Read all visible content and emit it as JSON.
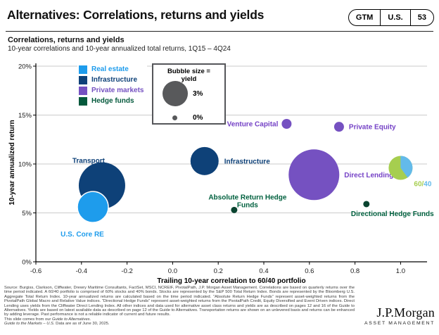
{
  "header": {
    "title": "Alternatives: Correlations, returns and yields",
    "gtm_label": "GTM",
    "region_label": "U.S.",
    "page_number": "53"
  },
  "chart_data": {
    "type": "scatter",
    "title": "Correlations, returns and yields",
    "subtitle": "10-year correlations and 10-year annualized total returns, 1Q15 – 4Q24",
    "xlabel": "Trailing 10-year correlation to 60/40 portfolio",
    "ylabel": "10-year annualized return",
    "xlim": [
      -0.6,
      1.12
    ],
    "ylim": [
      0,
      20
    ],
    "x_ticks": [
      -0.6,
      -0.4,
      -0.2,
      0.0,
      0.2,
      0.4,
      0.6,
      0.8,
      1.0
    ],
    "y_ticks": [
      0,
      5,
      10,
      15,
      20
    ],
    "grid": true,
    "bubble_legend": {
      "title": "Bubble size = yield",
      "large_label": "3%",
      "small_label": "0%"
    },
    "series_legend": [
      {
        "label": "Real estate",
        "color": "#1E9CEC"
      },
      {
        "label": "Infrastructure",
        "color": "#0E4178"
      },
      {
        "label": "Private markets",
        "color": "#7551C1"
      },
      {
        "label": "Hedge funds",
        "color": "#04593C"
      }
    ],
    "points": [
      {
        "id": "transport",
        "label_lines": [
          "Transport"
        ],
        "x": -0.31,
        "y": 7.8,
        "r": 33,
        "color": "#0E4178",
        "label_color": "#0E4178",
        "label_anchor": "end",
        "label_dx": 4,
        "label_dy": [
          -32
        ]
      },
      {
        "id": "us-core-re",
        "label_lines": [
          "U.S. Core RE"
        ],
        "x": -0.35,
        "y": 5.6,
        "r": 22,
        "color": "#1E9CEC",
        "label_color": "#1E9CEC",
        "white_stroke": true,
        "label_anchor": "middle",
        "label_dx": -15,
        "label_dy": [
          42
        ]
      },
      {
        "id": "infrastructure",
        "label_lines": [
          "Infrastructure"
        ],
        "x": 0.14,
        "y": 10.3,
        "r": 20,
        "color": "#0E4178",
        "label_color": "#0E4178",
        "label_anchor": "start",
        "label_dx": 28,
        "label_dy": [
          3.5
        ]
      },
      {
        "id": "absolute-return-hedge-funds",
        "label_lines": [
          "Absolute Return Hedge",
          "Funds"
        ],
        "x": 0.27,
        "y": 5.3,
        "r": 4.5,
        "color": "#0A4430",
        "label_color": "#01613F",
        "label_anchor": "middle",
        "label_dx": 19,
        "label_dy": [
          -15,
          -4
        ]
      },
      {
        "id": "venture-capital",
        "label_lines": [
          "Venture Capital"
        ],
        "x": 0.5,
        "y": 14.1,
        "r": 7,
        "color": "#7551C1",
        "label_color": "#7542C6",
        "label_anchor": "end",
        "label_dx": -12,
        "label_dy": [
          3.5
        ]
      },
      {
        "id": "private-equity",
        "label_lines": [
          "Private Equity"
        ],
        "x": 0.73,
        "y": 13.8,
        "r": 7,
        "color": "#7551C1",
        "label_color": "#7542C6",
        "label_anchor": "start",
        "label_dx": 14,
        "label_dy": [
          3.5
        ]
      },
      {
        "id": "direct-lending",
        "label_lines": [
          "Direct Lending"
        ],
        "x": 0.62,
        "y": 8.9,
        "r": 36,
        "color": "#7551C1",
        "label_color": "#7542C6",
        "label_anchor": "start",
        "label_dx": 43,
        "label_dy": [
          3.5
        ]
      },
      {
        "id": "directional-hedge-funds",
        "label_lines": [
          "Directional Hedge Funds"
        ],
        "x": 0.85,
        "y": 5.9,
        "r": 4.5,
        "color": "#0A4430",
        "label_color": "#01613F",
        "label_anchor": "middle",
        "label_dx": 37,
        "label_dy": [
          17
        ]
      },
      {
        "id": "60-40-portfolio",
        "x": 1.0,
        "y": 9.6,
        "r": 17,
        "pie": {
          "fractions": [
            0.6,
            0.4
          ],
          "colors": [
            "#A6CE4F",
            "#63BAEA"
          ]
        },
        "label_anchor": "start",
        "label_dx": 19,
        "label_dy": [
          26
        ],
        "label_parts": [
          {
            "text": "60/",
            "color": "#A6CE4F"
          },
          {
            "text": "40",
            "color": "#63BAEA"
          }
        ]
      }
    ]
  },
  "footer": {
    "source_text": "Source: Burgiss, Clarkson, Cliffwater, Drewry Maritime Consultants, FactSet, MSCI, NCREIF, PivotalPath, J.P. Morgan Asset Management. Correlations are based on quarterly returns over the time period indicated. A 60/40 portfolio is comprised of 60% stocks and 40% bonds. Stocks are represented by the S&P 500 Total Return Index. Bonds are represented by the Bloomberg U.S. Aggregate Total Return Index. 10-year annualized returns are calculated based on the time period indicated. “Absolute Return Hedge Funds” represent asset-weighted returns from the PivotalPath Global Macro and Relative Value indices. “Directional Hedge Funds” represent asset-weighted returns from the PivotalPath Credit, Equity Diversified and Event Driven indices. Direct Lending uses yields from the Cliffwater Direct Lending Index. All other indices and data used for alternative asset class returns and yields are as described on pages 12 and 16 of the Guide to Alternatives. Yields are based on latest available data as described on page 12 of the Guide to Alternatives. Transportation returns are shown on an unlevered basis and returns can be enhanced by adding leverage. Past performance is not a reliable indicator of current and future results.",
    "note_plain": "This slide comes from our ",
    "note_italic": "Guide to Alternatives.",
    "gtm_italic": "Guide to the Markets – U.S.",
    "gtm_plain": " Data are as of June 30, 2025."
  },
  "logo": {
    "name": "J.P.Morgan",
    "division": "ASSET MANAGEMENT"
  }
}
